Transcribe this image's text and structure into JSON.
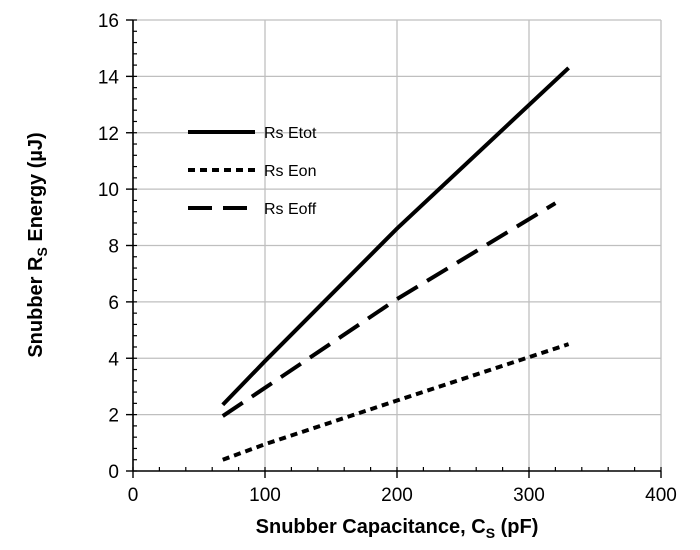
{
  "chart_data": {
    "type": "line",
    "xlabel": "Snubber Capacitance, C",
    "xlabel_sub": "S",
    "xlabel_suffix": " (pF)",
    "ylabel": "Snubber R",
    "ylabel_sub": "S",
    "ylabel_suffix": " Energy (µJ)",
    "xlim": [
      0,
      400
    ],
    "ylim": [
      0,
      16
    ],
    "x_ticks": [
      0,
      100,
      200,
      300,
      400
    ],
    "y_ticks": [
      0,
      2,
      4,
      6,
      8,
      10,
      12,
      14,
      16
    ],
    "grid": true,
    "legend_position": "upper-left",
    "series": [
      {
        "name": "Rs Etot",
        "style": "solid",
        "x": [
          68,
          100,
          200,
          330
        ],
        "y": [
          2.35,
          3.9,
          8.6,
          14.3
        ]
      },
      {
        "name": "Rs Eon",
        "style": "dotted",
        "x": [
          68,
          100,
          200,
          330
        ],
        "y": [
          0.4,
          0.95,
          2.5,
          4.5
        ]
      },
      {
        "name": "Rs Eoff",
        "style": "dashed",
        "x": [
          68,
          100,
          200,
          320
        ],
        "y": [
          1.95,
          2.95,
          6.1,
          9.5
        ]
      }
    ]
  }
}
